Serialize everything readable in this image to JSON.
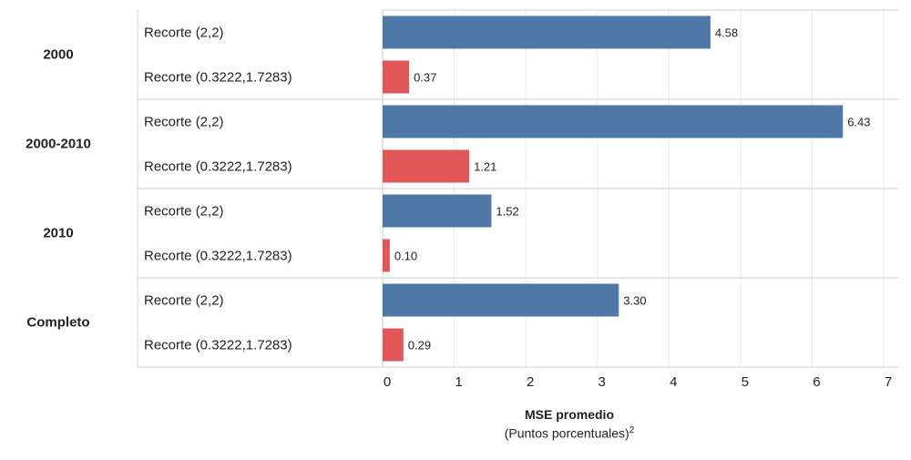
{
  "chart_data": {
    "type": "bar",
    "orientation": "horizontal",
    "xlabel": "MSE promedio",
    "xlabel_sub": "(Puntos porcentuales)",
    "xlabel_sub_sup": "2",
    "xlim": [
      0,
      7
    ],
    "xticks": [
      "0",
      "1",
      "2",
      "3",
      "4",
      "5",
      "6",
      "7"
    ],
    "grid": true,
    "colors": {
      "Recorte (2,2)": "#4e79a7",
      "Recorte (0.3222,1.7283)": "#e15759"
    },
    "groups": [
      {
        "name": "2000",
        "bars": [
          {
            "label": "Recorte (2,2)",
            "value": 4.58,
            "value_label": "4.58"
          },
          {
            "label": "Recorte (0.3222,1.7283)",
            "value": 0.37,
            "value_label": "0.37"
          }
        ]
      },
      {
        "name": "2000-2010",
        "bars": [
          {
            "label": "Recorte (2,2)",
            "value": 6.43,
            "value_label": "6.43"
          },
          {
            "label": "Recorte (0.3222,1.7283)",
            "value": 1.21,
            "value_label": "1.21"
          }
        ]
      },
      {
        "name": "2010",
        "bars": [
          {
            "label": "Recorte (2,2)",
            "value": 1.52,
            "value_label": "1.52"
          },
          {
            "label": "Recorte (0.3222,1.7283)",
            "value": 0.1,
            "value_label": "0.10"
          }
        ]
      },
      {
        "name": "Completo",
        "bars": [
          {
            "label": "Recorte (2,2)",
            "value": 3.3,
            "value_label": "3.30"
          },
          {
            "label": "Recorte (0.3222,1.7283)",
            "value": 0.29,
            "value_label": "0.29"
          }
        ]
      }
    ]
  }
}
